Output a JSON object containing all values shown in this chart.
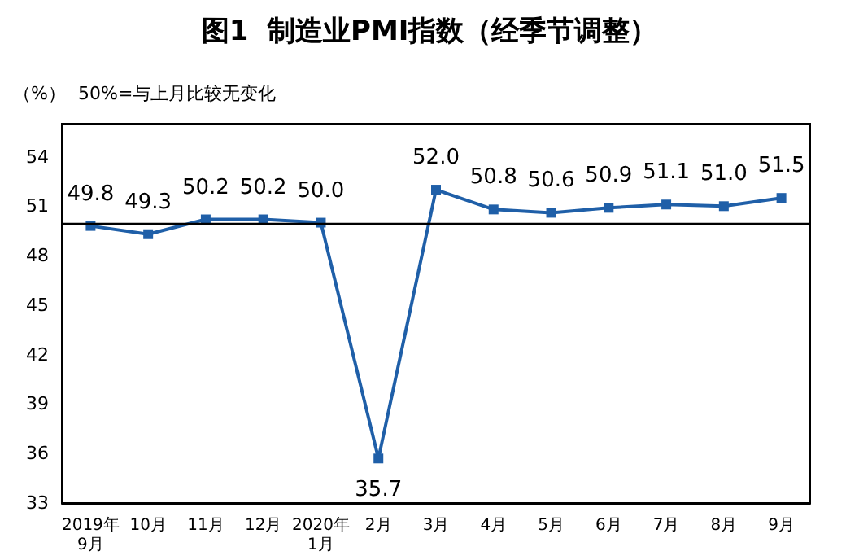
{
  "chart_data": {
    "type": "line",
    "title": "图1  制造业PMI指数（经季节调整）",
    "annotations": [
      "（%）",
      "50%=与上月比较无变化"
    ],
    "categories": [
      "2019年\n9月",
      "10月",
      "11月",
      "12月",
      "2020年\n1月",
      "2月",
      "3月",
      "4月",
      "5月",
      "6月",
      "7月",
      "8月",
      "9月"
    ],
    "series": [
      {
        "color": "#1f5fa8",
        "values": [
          49.8,
          49.3,
          50.2,
          50.2,
          50.0,
          35.7,
          52.0,
          50.8,
          50.6,
          50.9,
          51.1,
          51.0,
          51.5
        ],
        "value_labels": [
          "49.8",
          "49.3",
          "50.2",
          "50.2",
          "50.0",
          "35.7",
          "52.0",
          "50.8",
          "50.6",
          "50.9",
          "51.1",
          "51.0",
          "51.5"
        ]
      }
    ],
    "ylim": [
      33,
      56
    ],
    "yticks": [
      33,
      36,
      39,
      42,
      45,
      48,
      51,
      54
    ],
    "ref_lines": [
      {
        "axis": "y",
        "value": 50,
        "color": "#000000",
        "line_style": "solid"
      }
    ],
    "marker": "square",
    "line_style": "solid",
    "grid": false
  }
}
